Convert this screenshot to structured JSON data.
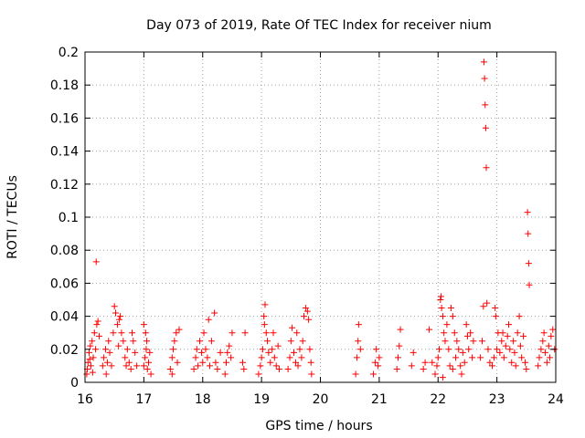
{
  "chart_data": {
    "type": "scatter",
    "title": "Day 073 of 2019, Rate Of TEC Index for receiver nium",
    "xlabel": "GPS time / hours",
    "ylabel": "ROTI / TECUs",
    "xlim": [
      16,
      24
    ],
    "ylim": [
      0,
      0.2
    ],
    "x_ticks": [
      16,
      17,
      18,
      19,
      20,
      21,
      22,
      23,
      24
    ],
    "x_tick_labels": [
      "16",
      "17",
      "18",
      "19",
      "20",
      "21",
      "22",
      "23",
      "24"
    ],
    "y_ticks": [
      0,
      0.02,
      0.04,
      0.06,
      0.08,
      0.1,
      0.12,
      0.14,
      0.16,
      0.18,
      0.2
    ],
    "y_tick_labels": [
      "0",
      "0.02",
      "0.04",
      "0.06",
      "0.08",
      "0.1",
      "0.12",
      "0.14",
      "0.16",
      "0.18",
      "0.2"
    ],
    "grid": true,
    "marker": "+",
    "color": "#ff0000",
    "series": [
      {
        "name": "ROTI",
        "points": [
          [
            16.03,
            0.005
          ],
          [
            16.05,
            0.012
          ],
          [
            16.07,
            0.018
          ],
          [
            16.09,
            0.022
          ],
          [
            16.1,
            0.01
          ],
          [
            16.12,
            0.025
          ],
          [
            16.14,
            0.015
          ],
          [
            16.16,
            0.03
          ],
          [
            16.18,
            0.02
          ],
          [
            16.2,
            0.035
          ],
          [
            16.22,
            0.037
          ],
          [
            16.24,
            0.028
          ],
          [
            16.04,
            0.008
          ],
          [
            16.08,
            0.014
          ],
          [
            16.13,
            0.006
          ],
          [
            16.19,
            0.073
          ],
          [
            16.3,
            0.01
          ],
          [
            16.32,
            0.015
          ],
          [
            16.35,
            0.02
          ],
          [
            16.38,
            0.012
          ],
          [
            16.4,
            0.025
          ],
          [
            16.42,
            0.018
          ],
          [
            16.45,
            0.01
          ],
          [
            16.48,
            0.03
          ],
          [
            16.5,
            0.046
          ],
          [
            16.52,
            0.042
          ],
          [
            16.55,
            0.035
          ],
          [
            16.58,
            0.038
          ],
          [
            16.6,
            0.04
          ],
          [
            16.62,
            0.03
          ],
          [
            16.65,
            0.025
          ],
          [
            16.68,
            0.015
          ],
          [
            16.7,
            0.01
          ],
          [
            16.72,
            0.02
          ],
          [
            16.75,
            0.012
          ],
          [
            16.78,
            0.008
          ],
          [
            16.8,
            0.03
          ],
          [
            16.82,
            0.025
          ],
          [
            16.85,
            0.018
          ],
          [
            16.88,
            0.01
          ],
          [
            16.36,
            0.005
          ],
          [
            16.57,
            0.022
          ],
          [
            17.0,
            0.01
          ],
          [
            17.02,
            0.015
          ],
          [
            17.04,
            0.02
          ],
          [
            17.06,
            0.008
          ],
          [
            17.08,
            0.012
          ],
          [
            17.1,
            0.018
          ],
          [
            17.12,
            0.005
          ],
          [
            17.0,
            0.035
          ],
          [
            17.03,
            0.03
          ],
          [
            17.05,
            0.025
          ],
          [
            17.45,
            0.008
          ],
          [
            17.48,
            0.015
          ],
          [
            17.5,
            0.02
          ],
          [
            17.52,
            0.025
          ],
          [
            17.55,
            0.03
          ],
          [
            17.57,
            0.012
          ],
          [
            17.6,
            0.032
          ],
          [
            17.48,
            0.005
          ],
          [
            17.85,
            0.008
          ],
          [
            17.88,
            0.015
          ],
          [
            17.9,
            0.02
          ],
          [
            17.92,
            0.01
          ],
          [
            17.95,
            0.025
          ],
          [
            17.98,
            0.018
          ],
          [
            18.0,
            0.012
          ],
          [
            18.02,
            0.03
          ],
          [
            18.05,
            0.02
          ],
          [
            18.08,
            0.015
          ],
          [
            18.1,
            0.038
          ],
          [
            18.12,
            0.01
          ],
          [
            18.15,
            0.025
          ],
          [
            18.2,
            0.042
          ],
          [
            18.22,
            0.012
          ],
          [
            18.25,
            0.008
          ],
          [
            18.3,
            0.018
          ],
          [
            18.38,
            0.005
          ],
          [
            18.4,
            0.012
          ],
          [
            18.42,
            0.018
          ],
          [
            18.45,
            0.022
          ],
          [
            18.48,
            0.015
          ],
          [
            18.5,
            0.03
          ],
          [
            18.68,
            0.012
          ],
          [
            18.7,
            0.008
          ],
          [
            18.72,
            0.03
          ],
          [
            18.95,
            0.005
          ],
          [
            18.98,
            0.01
          ],
          [
            19.0,
            0.015
          ],
          [
            19.02,
            0.02
          ],
          [
            19.04,
            0.04
          ],
          [
            19.05,
            0.035
          ],
          [
            19.06,
            0.047
          ],
          [
            19.08,
            0.03
          ],
          [
            19.1,
            0.025
          ],
          [
            19.12,
            0.018
          ],
          [
            19.15,
            0.012
          ],
          [
            19.18,
            0.02
          ],
          [
            19.2,
            0.03
          ],
          [
            19.22,
            0.015
          ],
          [
            19.25,
            0.01
          ],
          [
            19.28,
            0.022
          ],
          [
            19.3,
            0.008
          ],
          [
            19.45,
            0.008
          ],
          [
            19.48,
            0.015
          ],
          [
            19.5,
            0.025
          ],
          [
            19.52,
            0.033
          ],
          [
            19.55,
            0.018
          ],
          [
            19.58,
            0.012
          ],
          [
            19.6,
            0.03
          ],
          [
            19.62,
            0.01
          ],
          [
            19.65,
            0.02
          ],
          [
            19.68,
            0.015
          ],
          [
            19.7,
            0.025
          ],
          [
            19.72,
            0.04
          ],
          [
            19.75,
            0.045
          ],
          [
            19.78,
            0.043
          ],
          [
            19.8,
            0.038
          ],
          [
            19.82,
            0.02
          ],
          [
            19.84,
            0.012
          ],
          [
            19.85,
            0.005
          ],
          [
            20.6,
            0.005
          ],
          [
            20.62,
            0.015
          ],
          [
            20.64,
            0.025
          ],
          [
            20.65,
            0.035
          ],
          [
            20.68,
            0.02
          ],
          [
            20.9,
            0.005
          ],
          [
            20.93,
            0.012
          ],
          [
            20.95,
            0.02
          ],
          [
            20.98,
            0.01
          ],
          [
            21.0,
            0.015
          ],
          [
            21.3,
            0.008
          ],
          [
            21.32,
            0.015
          ],
          [
            21.34,
            0.022
          ],
          [
            21.36,
            0.032
          ],
          [
            21.55,
            0.01
          ],
          [
            21.58,
            0.018
          ],
          [
            21.75,
            0.008
          ],
          [
            21.78,
            0.012
          ],
          [
            21.85,
            0.032
          ],
          [
            21.9,
            0.012
          ],
          [
            21.95,
            0.005
          ],
          [
            21.98,
            0.01
          ],
          [
            22.0,
            0.015
          ],
          [
            22.02,
            0.02
          ],
          [
            22.04,
            0.05
          ],
          [
            22.05,
            0.052
          ],
          [
            22.06,
            0.045
          ],
          [
            22.08,
            0.04
          ],
          [
            22.1,
            0.03
          ],
          [
            22.12,
            0.025
          ],
          [
            22.15,
            0.035
          ],
          [
            22.18,
            0.02
          ],
          [
            22.2,
            0.01
          ],
          [
            22.22,
            0.045
          ],
          [
            22.25,
            0.04
          ],
          [
            22.28,
            0.03
          ],
          [
            22.3,
            0.015
          ],
          [
            22.32,
            0.025
          ],
          [
            22.35,
            0.02
          ],
          [
            22.38,
            0.01
          ],
          [
            22.4,
            0.005
          ],
          [
            22.42,
            0.018
          ],
          [
            22.45,
            0.012
          ],
          [
            22.48,
            0.035
          ],
          [
            22.5,
            0.028
          ],
          [
            22.52,
            0.02
          ],
          [
            22.55,
            0.03
          ],
          [
            22.58,
            0.015
          ],
          [
            22.6,
            0.025
          ],
          [
            22.08,
            0.003
          ],
          [
            22.25,
            0.008
          ],
          [
            22.72,
            0.015
          ],
          [
            22.75,
            0.025
          ],
          [
            22.77,
            0.046
          ],
          [
            22.78,
            0.194
          ],
          [
            22.79,
            0.184
          ],
          [
            22.8,
            0.168
          ],
          [
            22.81,
            0.154
          ],
          [
            22.82,
            0.13
          ],
          [
            22.83,
            0.048
          ],
          [
            22.85,
            0.02
          ],
          [
            22.88,
            0.012
          ],
          [
            22.92,
            0.01
          ],
          [
            22.95,
            0.015
          ],
          [
            22.97,
            0.045
          ],
          [
            22.98,
            0.04
          ],
          [
            23.0,
            0.02
          ],
          [
            23.02,
            0.03
          ],
          [
            23.05,
            0.018
          ],
          [
            23.08,
            0.025
          ],
          [
            23.1,
            0.03
          ],
          [
            23.12,
            0.015
          ],
          [
            23.15,
            0.022
          ],
          [
            23.18,
            0.028
          ],
          [
            23.2,
            0.035
          ],
          [
            23.22,
            0.02
          ],
          [
            23.25,
            0.012
          ],
          [
            23.28,
            0.025
          ],
          [
            23.3,
            0.018
          ],
          [
            23.32,
            0.01
          ],
          [
            23.35,
            0.03
          ],
          [
            23.38,
            0.04
          ],
          [
            23.4,
            0.022
          ],
          [
            23.42,
            0.015
          ],
          [
            23.45,
            0.028
          ],
          [
            23.48,
            0.012
          ],
          [
            23.5,
            0.008
          ],
          [
            23.52,
            0.103
          ],
          [
            23.53,
            0.09
          ],
          [
            23.54,
            0.072
          ],
          [
            23.55,
            0.059
          ],
          [
            23.7,
            0.01
          ],
          [
            23.72,
            0.015
          ],
          [
            23.75,
            0.02
          ],
          [
            23.78,
            0.025
          ],
          [
            23.8,
            0.03
          ],
          [
            23.82,
            0.018
          ],
          [
            23.85,
            0.012
          ],
          [
            23.88,
            0.022
          ],
          [
            23.9,
            0.015
          ],
          [
            23.92,
            0.028
          ],
          [
            23.95,
            0.032
          ],
          [
            23.98,
            0.02
          ]
        ]
      }
    ]
  }
}
